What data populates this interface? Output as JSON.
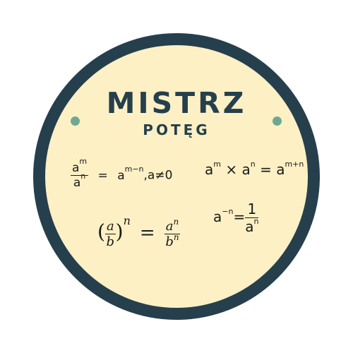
{
  "badge": {
    "title": "MISTRZ",
    "subtitle": "POTĘG",
    "colors": {
      "border": "#263f4d",
      "background": "#fdf0c4",
      "dots": "#6ea891",
      "text": "#263f4d"
    }
  },
  "formulas": {
    "division": {
      "num_base": "a",
      "num_exp": "m",
      "den_base": "a",
      "den_exp": "n",
      "equals": "=",
      "res_base": "a",
      "res_exp": "m−n",
      "condition": ",a≠0"
    },
    "multiplication": {
      "base1": "a",
      "exp1": "m",
      "times": "×",
      "base2": "a",
      "exp2": "n",
      "equals": "=",
      "res_base": "a",
      "res_exp": "m+n"
    },
    "negative": {
      "base": "a",
      "exp": "−n",
      "equals": "=",
      "num": "1",
      "den_base": "a",
      "den_exp": "n"
    },
    "fraction_power": {
      "open": "(",
      "num": "a",
      "den": "b",
      "close": ")",
      "exp": "n",
      "equals": "=",
      "res_num_base": "a",
      "res_num_exp": "n",
      "res_den_base": "b",
      "res_den_exp": "n"
    }
  }
}
